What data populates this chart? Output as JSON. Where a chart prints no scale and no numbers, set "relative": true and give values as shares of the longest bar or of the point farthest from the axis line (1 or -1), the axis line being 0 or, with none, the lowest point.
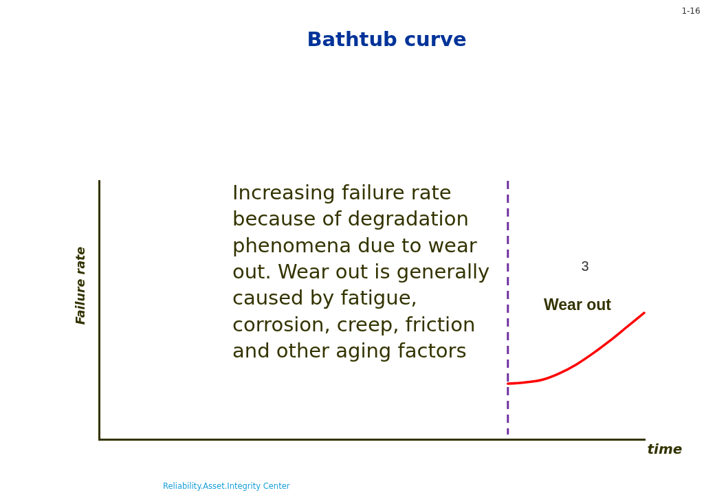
{
  "chart_data": {
    "type": "line",
    "title": "Bathtub curve",
    "xlabel": "time",
    "ylabel": "Failure rate",
    "relative": true,
    "categories": [
      null,
      null,
      null,
      null,
      null,
      null,
      null,
      null,
      null,
      null,
      null,
      null,
      null,
      null,
      null,
      null,
      null,
      null,
      null,
      null,
      null,
      null,
      null,
      null,
      null,
      null,
      null,
      null,
      null,
      null,
      null,
      null,
      null
    ],
    "series": [
      {
        "color": "#ff0000",
        "values": [
          null,
          null,
          null,
          null,
          null,
          null,
          null,
          null,
          null,
          null,
          null,
          null,
          null,
          null,
          null,
          null,
          null,
          null,
          null,
          null,
          null,
          null,
          null,
          null,
          0.44,
          0.45,
          0.47,
          0.52,
          0.59,
          0.68,
          0.78,
          0.89,
          1.0
        ]
      }
    ],
    "annotations": [
      "Increasing failure rate\nbecause of degradation\nphenomena due to wear\nout. Wear out is generally\ncaused by fatigue,\ncorrosion, creep, friction\nand other aging factors",
      "3",
      "Wear out",
      "1-16",
      "Reliability.Asset.Integrity Center"
    ]
  }
}
